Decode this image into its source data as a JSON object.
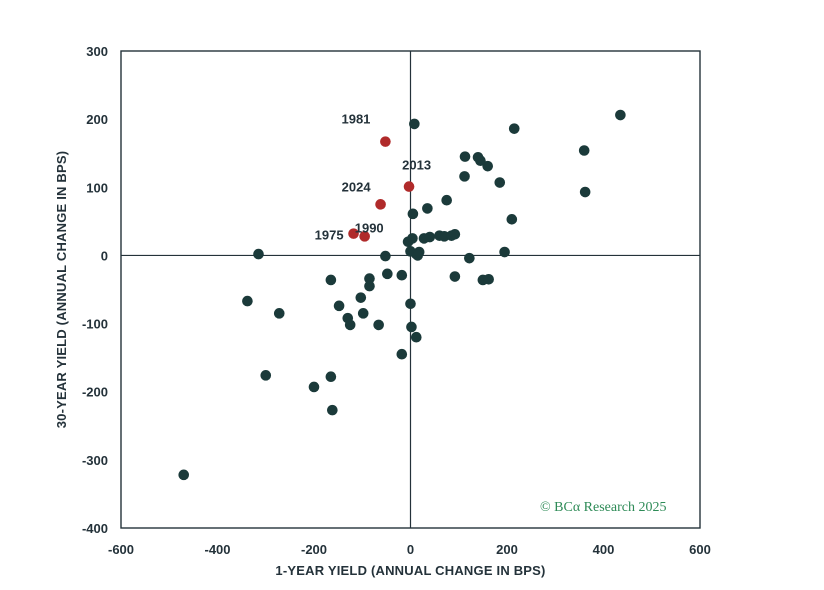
{
  "chart_data": {
    "type": "scatter",
    "xlabel": "1-YEAR YIELD (ANNUAL CHANGE IN BPS)",
    "ylabel": "30-YEAR YIELD (ANNUAL CHANGE IN BPS)",
    "xlim": [
      -600,
      600
    ],
    "ylim": [
      -400,
      300
    ],
    "x_ticks": [
      "-600",
      "-400",
      "-200",
      "0",
      "200",
      "400",
      "600"
    ],
    "y_ticks": [
      "300",
      "200",
      "100",
      "0",
      "-100",
      "-200",
      "-300",
      "-400"
    ],
    "x_tick_values": [
      -600,
      -400,
      -200,
      0,
      200,
      400,
      600
    ],
    "y_tick_values": [
      300,
      200,
      100,
      0,
      -100,
      -200,
      -300,
      -400
    ],
    "grid": false,
    "colors": {
      "default": "#1b3a3a",
      "highlight": "#b02a2a",
      "axis": "#24323a",
      "credit": "#2e8b57"
    },
    "series": [
      {
        "points": [
          [
            -470,
            -322
          ],
          [
            -338,
            -67
          ],
          [
            -315,
            2
          ],
          [
            -300,
            -176
          ],
          [
            -272,
            -85
          ],
          [
            -200,
            -193
          ],
          [
            -165,
            -36
          ],
          [
            -165,
            -178
          ],
          [
            -162,
            -227
          ],
          [
            -148,
            -74
          ],
          [
            -130,
            -92
          ],
          [
            -125,
            -102
          ],
          [
            -103,
            -62
          ],
          [
            -98,
            -85
          ],
          [
            -85,
            -45
          ],
          [
            -85,
            -34
          ],
          [
            -66,
            -102
          ],
          [
            -52,
            -1
          ],
          [
            -48,
            -27
          ],
          [
            -18,
            -145
          ],
          [
            -18,
            -29
          ],
          [
            -5,
            20
          ],
          [
            0,
            6
          ],
          [
            0,
            -71
          ],
          [
            2,
            -105
          ],
          [
            4,
            25
          ],
          [
            5,
            61
          ],
          [
            8,
            193
          ],
          [
            12,
            -120
          ],
          [
            12,
            2
          ],
          [
            15,
            0
          ],
          [
            18,
            5
          ],
          [
            28,
            25
          ],
          [
            35,
            69
          ],
          [
            40,
            27
          ],
          [
            60,
            29
          ],
          [
            70,
            28
          ],
          [
            75,
            81
          ],
          [
            85,
            29
          ],
          [
            92,
            31
          ],
          [
            92,
            -31
          ],
          [
            112,
            116
          ],
          [
            113,
            145
          ],
          [
            122,
            -4
          ],
          [
            140,
            144
          ],
          [
            145,
            139
          ],
          [
            150,
            -36
          ],
          [
            160,
            131
          ],
          [
            162,
            -35
          ],
          [
            185,
            107
          ],
          [
            195,
            5
          ],
          [
            210,
            53
          ],
          [
            215,
            186
          ],
          [
            360,
            154
          ],
          [
            362,
            93
          ],
          [
            435,
            206
          ]
        ]
      },
      {
        "points": [
          [
            -118,
            32
          ],
          [
            -95,
            28
          ],
          [
            -62,
            75
          ],
          [
            -52,
            167
          ],
          [
            -3,
            101
          ]
        ]
      }
    ],
    "annotations": [
      {
        "text": "1981",
        "x": -52,
        "y": 167
      },
      {
        "text": "2013",
        "x": -3,
        "y": 101
      },
      {
        "text": "2024",
        "x": -62,
        "y": 75
      },
      {
        "text": "1975",
        "x": -118,
        "y": 32
      },
      {
        "text": "1990",
        "x": -95,
        "y": 28
      }
    ]
  },
  "credit": {
    "prefix": "© BC",
    "alpha": "α",
    "suffix": " Research 2025"
  }
}
